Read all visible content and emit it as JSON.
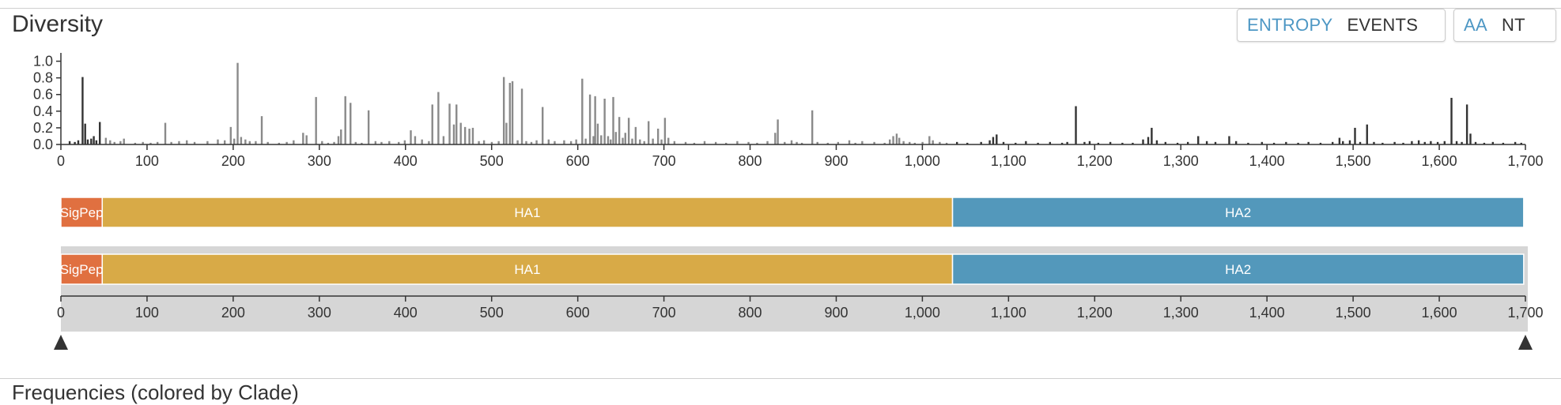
{
  "panel": {
    "title": "Diversity",
    "next_panel_title": "Frequencies (colored by Clade)"
  },
  "controls": {
    "measure": [
      {
        "label": "ENTROPY",
        "active": true
      },
      {
        "label": "EVENTS",
        "active": false
      }
    ],
    "mutation_type": [
      {
        "label": "AA",
        "active": true
      },
      {
        "label": "NT",
        "active": false
      }
    ]
  },
  "colors": {
    "bar_gray": "#8a8a8a",
    "bar_dark": "#333333",
    "active_button": "#4d97c4",
    "SigPep": "#e07040",
    "HA1": "#d8aa47",
    "HA2": "#5398bb",
    "brush_background": "#d6d6d6",
    "handle": "#333333"
  },
  "chart_data": {
    "type": "bar",
    "y_ticks": [
      "0.0",
      "0.2",
      "0.4",
      "0.6",
      "0.8",
      "1.0"
    ],
    "ylim": [
      0,
      1.1
    ],
    "xlim": [
      0,
      1700
    ],
    "x_ticks": [
      "0",
      "100",
      "200",
      "300",
      "400",
      "500",
      "600",
      "700",
      "800",
      "900",
      "1,000",
      "1,100",
      "1,200",
      "1,300",
      "1,400",
      "1,500",
      "1,600",
      "1,700"
    ],
    "x_tick_values": [
      0,
      100,
      200,
      300,
      400,
      500,
      600,
      700,
      800,
      900,
      1000,
      1100,
      1200,
      1300,
      1400,
      1500,
      1600,
      1700
    ],
    "brush_range": [
      0,
      1700
    ],
    "genes": [
      {
        "name": "SigPep",
        "start": 0,
        "end": 48
      },
      {
        "name": "HA1",
        "start": 48,
        "end": 1035
      },
      {
        "name": "HA2",
        "start": 1035,
        "end": 1698
      }
    ],
    "series": [
      {
        "gene": "SigPep",
        "points": [
          [
            10,
            0.04
          ],
          [
            16,
            0.03
          ],
          [
            20,
            0.05
          ],
          [
            25,
            0.81
          ],
          [
            28,
            0.25
          ],
          [
            31,
            0.06
          ],
          [
            35,
            0.07
          ],
          [
            38,
            0.1
          ],
          [
            41,
            0.05
          ],
          [
            45,
            0.27
          ]
        ]
      },
      {
        "gene": "HA1",
        "points": [
          [
            52,
            0.08
          ],
          [
            57,
            0.05
          ],
          [
            62,
            0.03
          ],
          [
            69,
            0.04
          ],
          [
            73,
            0.07
          ],
          [
            86,
            0.02
          ],
          [
            95,
            0.03
          ],
          [
            104,
            0.02
          ],
          [
            112,
            0.03
          ],
          [
            121,
            0.26
          ],
          [
            128,
            0.03
          ],
          [
            137,
            0.04
          ],
          [
            146,
            0.05
          ],
          [
            155,
            0.03
          ],
          [
            170,
            0.04
          ],
          [
            182,
            0.06
          ],
          [
            190,
            0.05
          ],
          [
            197,
            0.21
          ],
          [
            201,
            0.07
          ],
          [
            205,
            0.98
          ],
          [
            209,
            0.09
          ],
          [
            214,
            0.06
          ],
          [
            219,
            0.04
          ],
          [
            226,
            0.04
          ],
          [
            233,
            0.34
          ],
          [
            240,
            0.03
          ],
          [
            253,
            0.02
          ],
          [
            262,
            0.03
          ],
          [
            270,
            0.05
          ],
          [
            281,
            0.14
          ],
          [
            285,
            0.11
          ],
          [
            296,
            0.57
          ],
          [
            303,
            0.04
          ],
          [
            310,
            0.02
          ],
          [
            317,
            0.03
          ],
          [
            322,
            0.1
          ],
          [
            325,
            0.18
          ],
          [
            330,
            0.58
          ],
          [
            336,
            0.5
          ],
          [
            342,
            0.03
          ],
          [
            349,
            0.02
          ],
          [
            357,
            0.41
          ],
          [
            365,
            0.04
          ],
          [
            372,
            0.03
          ],
          [
            381,
            0.04
          ],
          [
            392,
            0.03
          ],
          [
            399,
            0.05
          ],
          [
            406,
            0.17
          ],
          [
            411,
            0.1
          ],
          [
            419,
            0.06
          ],
          [
            427,
            0.04
          ],
          [
            431,
            0.48
          ],
          [
            438,
            0.63
          ],
          [
            444,
            0.1
          ],
          [
            451,
            0.49
          ],
          [
            456,
            0.24
          ],
          [
            459,
            0.48
          ],
          [
            464,
            0.26
          ],
          [
            469,
            0.21
          ],
          [
            474,
            0.19
          ],
          [
            478,
            0.2
          ],
          [
            485,
            0.04
          ],
          [
            491,
            0.05
          ],
          [
            500,
            0.03
          ],
          [
            508,
            0.04
          ],
          [
            514,
            0.81
          ],
          [
            517,
            0.26
          ],
          [
            521,
            0.74
          ],
          [
            524,
            0.76
          ],
          [
            530,
            0.05
          ],
          [
            535,
            0.67
          ],
          [
            540,
            0.04
          ],
          [
            546,
            0.03
          ],
          [
            552,
            0.05
          ],
          [
            559,
            0.45
          ],
          [
            566,
            0.06
          ],
          [
            573,
            0.04
          ],
          [
            584,
            0.05
          ],
          [
            592,
            0.04
          ],
          [
            598,
            0.06
          ],
          [
            605,
            0.79
          ],
          [
            609,
            0.07
          ],
          [
            614,
            0.6
          ],
          [
            618,
            0.1
          ],
          [
            620,
            0.58
          ],
          [
            623,
            0.25
          ],
          [
            627,
            0.11
          ],
          [
            631,
            0.55
          ],
          [
            635,
            0.1
          ],
          [
            638,
            0.06
          ],
          [
            641,
            0.57
          ],
          [
            644,
            0.15
          ],
          [
            648,
            0.33
          ],
          [
            652,
            0.08
          ],
          [
            655,
            0.14
          ],
          [
            659,
            0.32
          ],
          [
            663,
            0.07
          ],
          [
            667,
            0.21
          ],
          [
            672,
            0.06
          ],
          [
            677,
            0.04
          ],
          [
            682,
            0.28
          ],
          [
            687,
            0.07
          ],
          [
            693,
            0.19
          ],
          [
            697,
            0.06
          ],
          [
            701,
            0.32
          ],
          [
            705,
            0.08
          ],
          [
            712,
            0.04
          ],
          [
            725,
            0.03
          ],
          [
            735,
            0.02
          ],
          [
            747,
            0.04
          ],
          [
            760,
            0.03
          ],
          [
            772,
            0.02
          ],
          [
            785,
            0.04
          ],
          [
            798,
            0.03
          ],
          [
            808,
            0.02
          ],
          [
            820,
            0.04
          ],
          [
            829,
            0.14
          ],
          [
            832,
            0.3
          ],
          [
            840,
            0.03
          ],
          [
            848,
            0.05
          ],
          [
            854,
            0.03
          ],
          [
            860,
            0.02
          ],
          [
            872,
            0.41
          ],
          [
            878,
            0.03
          ],
          [
            890,
            0.02
          ],
          [
            902,
            0.03
          ],
          [
            915,
            0.05
          ],
          [
            922,
            0.02
          ],
          [
            930,
            0.04
          ],
          [
            944,
            0.03
          ],
          [
            956,
            0.02
          ],
          [
            962,
            0.06
          ],
          [
            966,
            0.1
          ],
          [
            970,
            0.13
          ],
          [
            973,
            0.08
          ],
          [
            978,
            0.04
          ],
          [
            985,
            0.03
          ],
          [
            991,
            0.02
          ],
          [
            1000,
            0.03
          ],
          [
            1008,
            0.1
          ],
          [
            1012,
            0.05
          ],
          [
            1020,
            0.03
          ],
          [
            1028,
            0.02
          ]
        ]
      },
      {
        "gene": "HA2",
        "points": [
          [
            1040,
            0.03
          ],
          [
            1052,
            0.02
          ],
          [
            1068,
            0.03
          ],
          [
            1078,
            0.05
          ],
          [
            1082,
            0.09
          ],
          [
            1086,
            0.12
          ],
          [
            1094,
            0.03
          ],
          [
            1108,
            0.02
          ],
          [
            1120,
            0.04
          ],
          [
            1134,
            0.02
          ],
          [
            1148,
            0.03
          ],
          [
            1162,
            0.02
          ],
          [
            1168,
            0.03
          ],
          [
            1178,
            0.46
          ],
          [
            1188,
            0.03
          ],
          [
            1194,
            0.04
          ],
          [
            1204,
            0.02
          ],
          [
            1218,
            0.03
          ],
          [
            1232,
            0.02
          ],
          [
            1244,
            0.02
          ],
          [
            1256,
            0.06
          ],
          [
            1262,
            0.09
          ],
          [
            1266,
            0.2
          ],
          [
            1272,
            0.05
          ],
          [
            1282,
            0.03
          ],
          [
            1296,
            0.02
          ],
          [
            1308,
            0.03
          ],
          [
            1320,
            0.1
          ],
          [
            1330,
            0.04
          ],
          [
            1340,
            0.03
          ],
          [
            1356,
            0.1
          ],
          [
            1364,
            0.04
          ],
          [
            1378,
            0.02
          ],
          [
            1394,
            0.03
          ],
          [
            1408,
            0.02
          ],
          [
            1422,
            0.03
          ],
          [
            1436,
            0.02
          ],
          [
            1448,
            0.03
          ],
          [
            1462,
            0.02
          ],
          [
            1476,
            0.03
          ],
          [
            1484,
            0.08
          ],
          [
            1488,
            0.04
          ],
          [
            1496,
            0.05
          ],
          [
            1502,
            0.2
          ],
          [
            1508,
            0.03
          ],
          [
            1516,
            0.24
          ],
          [
            1524,
            0.03
          ],
          [
            1534,
            0.02
          ],
          [
            1548,
            0.03
          ],
          [
            1558,
            0.02
          ],
          [
            1568,
            0.04
          ],
          [
            1576,
            0.05
          ],
          [
            1583,
            0.03
          ],
          [
            1590,
            0.04
          ],
          [
            1598,
            0.03
          ],
          [
            1606,
            0.04
          ],
          [
            1614,
            0.56
          ],
          [
            1620,
            0.04
          ],
          [
            1626,
            0.03
          ],
          [
            1632,
            0.48
          ],
          [
            1636,
            0.13
          ],
          [
            1642,
            0.03
          ],
          [
            1652,
            0.02
          ],
          [
            1662,
            0.03
          ],
          [
            1674,
            0.02
          ],
          [
            1688,
            0.03
          ],
          [
            1695,
            0.02
          ]
        ]
      }
    ]
  }
}
